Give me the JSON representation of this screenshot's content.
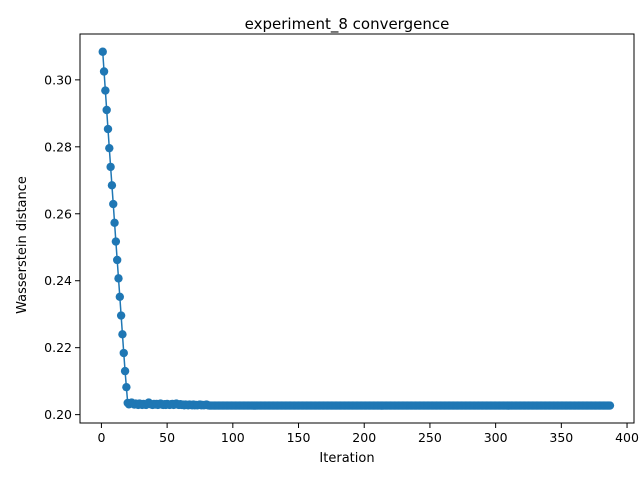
{
  "chart_data": {
    "type": "line",
    "title": "experiment_8 convergence",
    "xlabel": "Iteration",
    "ylabel": "Wasserstein distance",
    "xlim": [
      -16.3,
      405.3
    ],
    "ylim": [
      0.1975,
      0.3137
    ],
    "xticks": [
      0,
      50,
      100,
      150,
      200,
      250,
      300,
      350,
      400
    ],
    "yticks": [
      0.2,
      0.22,
      0.24,
      0.26,
      0.28,
      0.3
    ],
    "ytick_labels": [
      "0.20",
      "0.22",
      "0.24",
      "0.26",
      "0.28",
      "0.30"
    ],
    "grid": false,
    "legend": "none",
    "series": [
      {
        "color": "#1f77b4",
        "marker": "circle",
        "x_start": 1,
        "x_end": 387,
        "values": [
          0.3084,
          0.3025,
          0.2968,
          0.291,
          0.2853,
          0.2796,
          0.274,
          0.2685,
          0.2629,
          0.2573,
          0.2517,
          0.2462,
          0.2407,
          0.2352,
          0.2296,
          0.224,
          0.2184,
          0.213,
          0.2082,
          0.2035,
          0.2031,
          0.2033,
          0.2036,
          0.2033,
          0.203,
          0.2033,
          0.2031,
          0.2029,
          0.2033,
          0.2031,
          0.2029,
          0.2032,
          0.203,
          0.2029,
          0.2032,
          0.2036,
          0.2032,
          0.203,
          0.2029,
          0.2032,
          0.203,
          0.2032,
          0.2029,
          0.2031,
          0.2033,
          0.203,
          0.2029,
          0.2031,
          0.2029,
          0.2032,
          0.203,
          0.2029,
          0.2031,
          0.2032,
          0.2029,
          0.2031,
          0.2033,
          0.203,
          0.2029,
          0.2031,
          0.2029,
          0.203,
          0.2028,
          0.203,
          0.2029,
          0.2028,
          0.203,
          0.2029,
          0.2028,
          0.203,
          0.2028,
          0.2029,
          0.2028,
          0.2029,
          0.203,
          0.2028,
          0.2029,
          0.2028,
          0.2029,
          0.203,
          0.2028,
          0.2027
        ],
        "plateau_value": 0.2027
      }
    ]
  }
}
